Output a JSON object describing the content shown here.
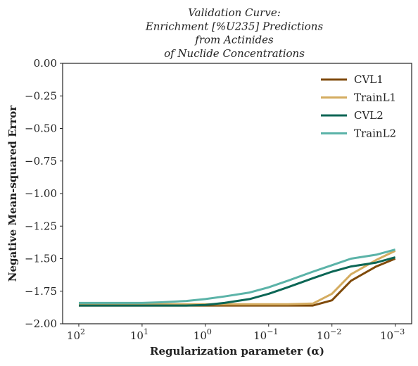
{
  "chart_data": {
    "type": "line",
    "title": [
      "Validation Curve:",
      "Enrichment [%U235] Predictions",
      "from Actinides",
      "of Nuclide Concentrations"
    ],
    "xlabel": "Regularization parameter (α)",
    "ylabel": "Negative Mean-squared Error",
    "xscale": "log",
    "x_axis_reversed": true,
    "xlim": [
      180,
      0.00055
    ],
    "ylim": [
      -2.0,
      0.0
    ],
    "x_ticks": [
      {
        "value": 100,
        "base": "10",
        "exp": "2"
      },
      {
        "value": 10,
        "base": "10",
        "exp": "1"
      },
      {
        "value": 1,
        "base": "10",
        "exp": "0"
      },
      {
        "value": 0.1,
        "base": "10",
        "exp": "−1"
      },
      {
        "value": 0.01,
        "base": "10",
        "exp": "−2"
      },
      {
        "value": 0.001,
        "base": "10",
        "exp": "−3"
      }
    ],
    "y_ticks": [
      {
        "value": 0.0,
        "label": "0.00"
      },
      {
        "value": -0.25,
        "label": "−0.25"
      },
      {
        "value": -0.5,
        "label": "−0.50"
      },
      {
        "value": -0.75,
        "label": "−0.75"
      },
      {
        "value": -1.0,
        "label": "−1.00"
      },
      {
        "value": -1.25,
        "label": "−1.25"
      },
      {
        "value": -1.5,
        "label": "−1.50"
      },
      {
        "value": -1.75,
        "label": "−1.75"
      },
      {
        "value": -2.0,
        "label": "−2.00"
      }
    ],
    "legend_position": "top-right",
    "grid": false,
    "x": [
      100,
      50,
      20,
      10,
      5,
      2,
      1,
      0.5,
      0.2,
      0.1,
      0.05,
      0.02,
      0.01,
      0.005,
      0.002,
      0.001
    ],
    "series": [
      {
        "name": "CVL1",
        "color": "#7f4a0a",
        "values": [
          -1.86,
          -1.86,
          -1.86,
          -1.86,
          -1.86,
          -1.86,
          -1.86,
          -1.86,
          -1.86,
          -1.86,
          -1.86,
          -1.86,
          -1.82,
          -1.67,
          -1.56,
          -1.5
        ]
      },
      {
        "name": "TrainL1",
        "color": "#d4ac60",
        "values": [
          -1.85,
          -1.85,
          -1.85,
          -1.85,
          -1.85,
          -1.85,
          -1.85,
          -1.85,
          -1.85,
          -1.85,
          -1.85,
          -1.845,
          -1.77,
          -1.62,
          -1.51,
          -1.44
        ]
      },
      {
        "name": "CVL2",
        "color": "#0b6655",
        "values": [
          -1.86,
          -1.86,
          -1.86,
          -1.86,
          -1.86,
          -1.86,
          -1.855,
          -1.84,
          -1.81,
          -1.77,
          -1.72,
          -1.65,
          -1.6,
          -1.56,
          -1.53,
          -1.49
        ]
      },
      {
        "name": "TrainL2",
        "color": "#5bb3a8",
        "values": [
          -1.84,
          -1.84,
          -1.84,
          -1.84,
          -1.835,
          -1.825,
          -1.81,
          -1.79,
          -1.76,
          -1.72,
          -1.67,
          -1.6,
          -1.55,
          -1.5,
          -1.47,
          -1.43
        ]
      }
    ]
  }
}
